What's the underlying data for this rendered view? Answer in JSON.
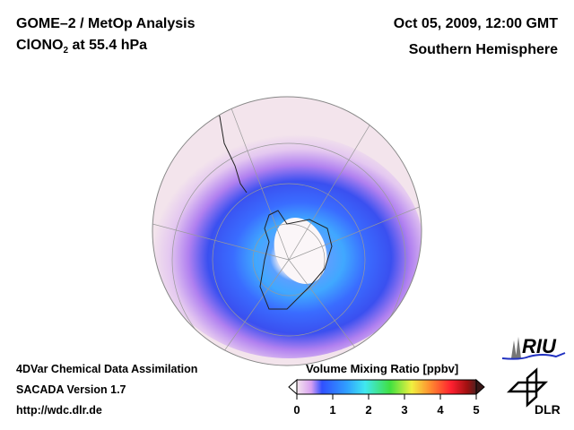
{
  "header": {
    "title_line1": "GOME–2 / MetOp Analysis",
    "species": "ClONO",
    "species_sub": "2",
    "level": " at 55.4 hPa",
    "datetime": "Oct 05, 2009, 12:00 GMT",
    "region": "Southern Hemisphere"
  },
  "footer": {
    "line1": "4DVar Chemical Data Assimilation",
    "line2": "SACADA Version 1.7",
    "line3": "http://wdc.dlr.de"
  },
  "colorbar": {
    "title": "Volume Mixing Ratio [ppbv]",
    "ticks": [
      "0",
      "1",
      "2",
      "3",
      "4",
      "5"
    ],
    "colors": [
      "#f4e6ee",
      "#d8a0f0",
      "#3050ff",
      "#30a0ff",
      "#40e8f0",
      "#40e040",
      "#f0f040",
      "#ff9030",
      "#ff2030",
      "#a01010",
      "#502020"
    ]
  },
  "logos": {
    "riu": "RIU",
    "dlr": "DLR"
  }
}
